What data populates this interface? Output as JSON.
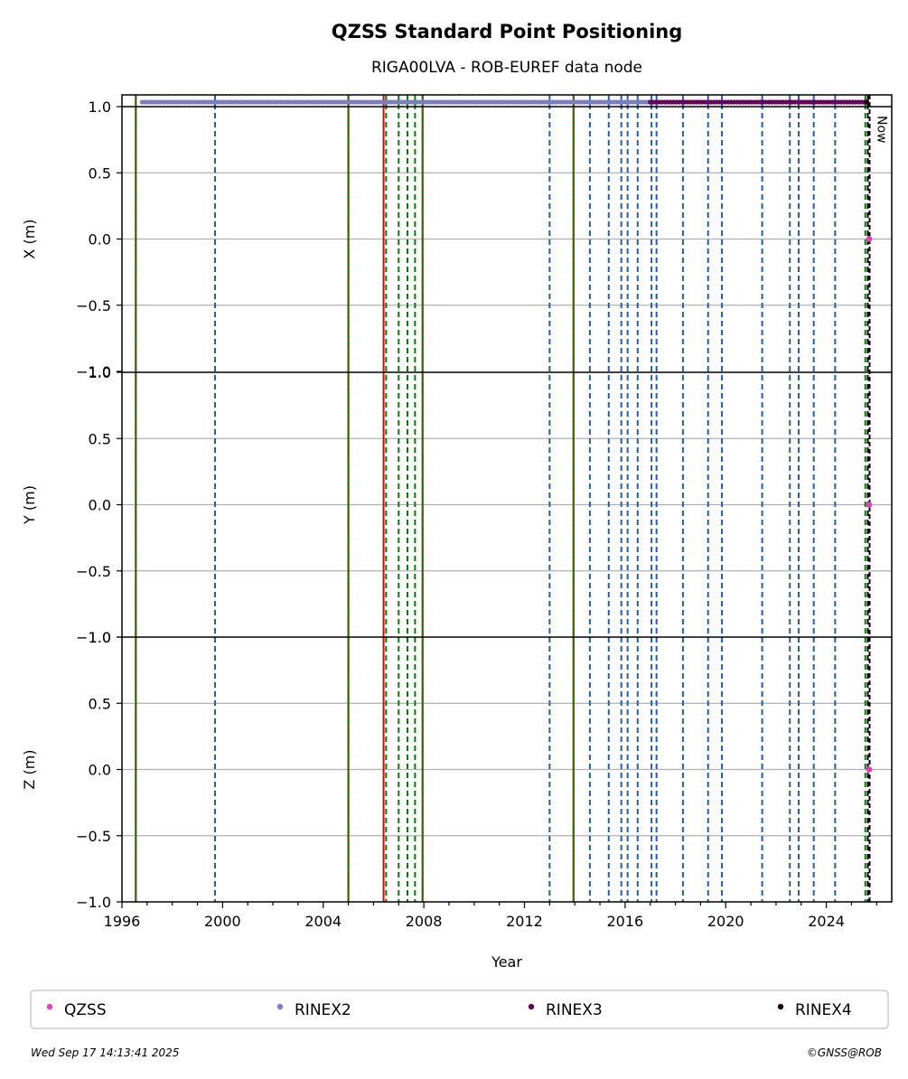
{
  "chart_data": {
    "type": "scatter",
    "title": "QZSS Standard Point Positioning",
    "subtitle": "RIGA00LVA - ROB-EUREF data node",
    "xlabel": "Year",
    "xlim": [
      1996.0,
      2026.6
    ],
    "x_ticks": [
      1996,
      2000,
      2004,
      2008,
      2012,
      2016,
      2020,
      2024
    ],
    "x_tick_labels": [
      "1996",
      "2000",
      "2004",
      "2008",
      "2012",
      "2016",
      "2020",
      "2024"
    ],
    "grid": "horizontal",
    "panels": [
      {
        "ylabel": "X (m)",
        "ylim": [
          -1.0,
          1.0
        ],
        "y_ticks": [
          -1.0,
          -0.5,
          0.0,
          0.5,
          1.0
        ],
        "y_tick_labels": [
          "−1.0",
          "−0.5",
          "0.0",
          "0.5",
          "1.0"
        ]
      },
      {
        "ylabel": "Y (m)",
        "ylim": [
          -1.0,
          1.0
        ],
        "y_ticks": [
          -1.0,
          -0.5,
          0.0,
          0.5,
          1.0
        ],
        "y_tick_labels": [
          "−1.0",
          "−0.5",
          "0.0",
          "0.5",
          "1.0"
        ]
      },
      {
        "ylabel": "Z (m)",
        "ylim": [
          -1.0,
          1.0
        ],
        "y_ticks": [
          -1.0,
          -0.5,
          0.0,
          0.5,
          1.0
        ],
        "y_tick_labels": [
          "−1.0",
          "−0.5",
          "0.0",
          "0.5",
          "1.0"
        ]
      }
    ],
    "series": [
      {
        "name": "QZSS",
        "color": "#e040c0",
        "points": [
          {
            "x": 2025.7,
            "y": 0.0
          }
        ]
      },
      {
        "name": "RINEX2",
        "color": "#7a7ec0",
        "x_range": [
          1996.8,
          2017.1
        ]
      },
      {
        "name": "RINEX3",
        "color": "#66005a",
        "x_range": [
          2017.0,
          2025.7
        ]
      },
      {
        "name": "RINEX4",
        "color": "#1a0010",
        "x_range": [
          2025.6,
          2025.7
        ]
      }
    ],
    "events": [
      {
        "x": 1996.55,
        "colors": [
          "#008000",
          "#e00000"
        ],
        "style": "mixed"
      },
      {
        "x": 1999.7,
        "colors": [
          "#1f5fb0"
        ],
        "style": "dashed"
      },
      {
        "x": 2005.0,
        "colors": [
          "#008000",
          "#e00000"
        ],
        "style": "mixed"
      },
      {
        "x": 2006.4,
        "colors": [
          "#e00000"
        ],
        "style": "solid"
      },
      {
        "x": 2006.5,
        "colors": [
          "#008000"
        ],
        "style": "dashed"
      },
      {
        "x": 2007.0,
        "colors": [
          "#008000"
        ],
        "style": "dashed"
      },
      {
        "x": 2007.35,
        "colors": [
          "#008000"
        ],
        "style": "dashed"
      },
      {
        "x": 2007.65,
        "colors": [
          "#008000"
        ],
        "style": "dashed"
      },
      {
        "x": 2007.95,
        "colors": [
          "#008000",
          "#e00000"
        ],
        "style": "mixed"
      },
      {
        "x": 2013.0,
        "colors": [
          "#1f5fb0"
        ],
        "style": "dashed"
      },
      {
        "x": 2013.95,
        "colors": [
          "#008000",
          "#e00000"
        ],
        "style": "mixed"
      },
      {
        "x": 2014.6,
        "colors": [
          "#1f5fb0"
        ],
        "style": "dashed"
      },
      {
        "x": 2015.35,
        "colors": [
          "#1f5fb0"
        ],
        "style": "dashed"
      },
      {
        "x": 2015.85,
        "colors": [
          "#1f5fb0"
        ],
        "style": "dashed"
      },
      {
        "x": 2016.1,
        "colors": [
          "#1f5fb0"
        ],
        "style": "dashed"
      },
      {
        "x": 2016.5,
        "colors": [
          "#1f5fb0"
        ],
        "style": "dashed"
      },
      {
        "x": 2017.05,
        "colors": [
          "#1f5fb0"
        ],
        "style": "dashed"
      },
      {
        "x": 2017.25,
        "colors": [
          "#1f5fb0"
        ],
        "style": "dashed"
      },
      {
        "x": 2018.3,
        "colors": [
          "#1f5fb0"
        ],
        "style": "dashed"
      },
      {
        "x": 2019.3,
        "colors": [
          "#1f5fb0"
        ],
        "style": "dashed"
      },
      {
        "x": 2019.85,
        "colors": [
          "#1f5fb0"
        ],
        "style": "dashed"
      },
      {
        "x": 2021.45,
        "colors": [
          "#1f5fb0"
        ],
        "style": "dashed"
      },
      {
        "x": 2022.55,
        "colors": [
          "#1f5fb0"
        ],
        "style": "dashed"
      },
      {
        "x": 2022.9,
        "colors": [
          "#1f5fb0"
        ],
        "style": "dashed"
      },
      {
        "x": 2023.5,
        "colors": [
          "#1f5fb0"
        ],
        "style": "dashed"
      },
      {
        "x": 2024.35,
        "colors": [
          "#1f5fb0"
        ],
        "style": "dashed"
      },
      {
        "x": 2025.55,
        "colors": [
          "#008000"
        ],
        "style": "dashed"
      },
      {
        "x": 2025.65,
        "colors": [
          "#000000"
        ],
        "style": "dashed"
      }
    ],
    "now_marker": {
      "x": 2025.72,
      "label": "Now"
    },
    "legend": {
      "placement": "bottom",
      "entries": [
        "QZSS",
        "RINEX2",
        "RINEX3",
        "RINEX4"
      ]
    },
    "timestamp": "Wed Sep 17 14:13:41 2025",
    "credit": "©GNSS@ROB"
  }
}
